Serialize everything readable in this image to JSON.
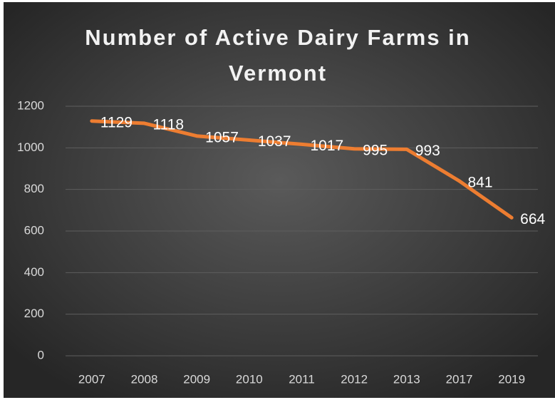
{
  "chart_data": {
    "type": "line",
    "title": "Number of Active Dairy Farms in Vermont",
    "categories": [
      "2007",
      "2008",
      "2009",
      "2010",
      "2011",
      "2012",
      "2013",
      "2017",
      "2019"
    ],
    "series": [
      {
        "name": "Active Dairy Farms",
        "color": "#ed7d31",
        "values": [
          1129,
          1118,
          1057,
          1037,
          1017,
          995,
          993,
          841,
          664
        ]
      }
    ],
    "ylim": [
      0,
      1200
    ],
    "yticks": [
      0,
      200,
      400,
      600,
      800,
      1000,
      1200
    ],
    "grid": true
  }
}
